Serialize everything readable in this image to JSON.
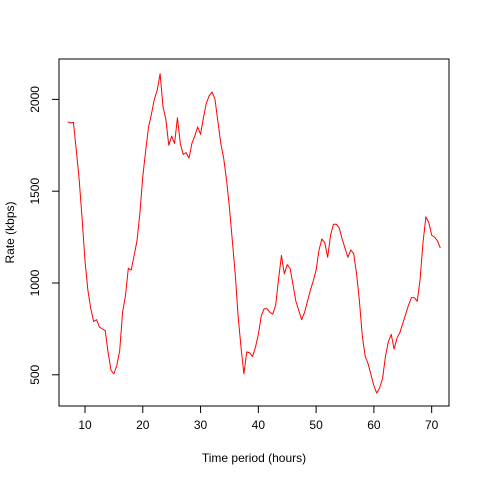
{
  "chart_data": {
    "type": "line",
    "title": "",
    "xlabel": "Time period (hours)",
    "ylabel": "Rate (kbps)",
    "xlim": [
      5.5,
      73
    ],
    "ylim": [
      330,
      2220
    ],
    "x_ticks": [
      10,
      20,
      30,
      40,
      50,
      60,
      70
    ],
    "y_ticks": [
      500,
      1000,
      1500,
      2000
    ],
    "grid": false,
    "legend": "none",
    "series": [
      {
        "color": "#FF0000",
        "points": [
          [
            7.0,
            1878
          ],
          [
            7.5,
            1872
          ],
          [
            8.0,
            1875
          ],
          [
            8.5,
            1720
          ],
          [
            9.0,
            1560
          ],
          [
            9.5,
            1350
          ],
          [
            10.0,
            1120
          ],
          [
            10.5,
            960
          ],
          [
            11.0,
            860
          ],
          [
            11.5,
            790
          ],
          [
            12.0,
            800
          ],
          [
            12.5,
            760
          ],
          [
            13.0,
            750
          ],
          [
            13.5,
            740
          ],
          [
            14.0,
            620
          ],
          [
            14.5,
            525
          ],
          [
            15.0,
            505
          ],
          [
            15.5,
            550
          ],
          [
            16.0,
            630
          ],
          [
            16.5,
            840
          ],
          [
            17.0,
            930
          ],
          [
            17.5,
            1080
          ],
          [
            18.0,
            1070
          ],
          [
            18.5,
            1150
          ],
          [
            19.0,
            1230
          ],
          [
            19.5,
            1380
          ],
          [
            20.0,
            1580
          ],
          [
            20.5,
            1720
          ],
          [
            21.0,
            1850
          ],
          [
            21.5,
            1920
          ],
          [
            22.0,
            2000
          ],
          [
            22.5,
            2050
          ],
          [
            23.0,
            2140
          ],
          [
            23.5,
            1960
          ],
          [
            24.0,
            1890
          ],
          [
            24.5,
            1750
          ],
          [
            25.0,
            1800
          ],
          [
            25.5,
            1760
          ],
          [
            26.0,
            1900
          ],
          [
            26.5,
            1760
          ],
          [
            27.0,
            1700
          ],
          [
            27.5,
            1710
          ],
          [
            28.0,
            1680
          ],
          [
            28.5,
            1760
          ],
          [
            29.0,
            1800
          ],
          [
            29.5,
            1850
          ],
          [
            30.0,
            1810
          ],
          [
            30.5,
            1900
          ],
          [
            31.0,
            1980
          ],
          [
            31.5,
            2020
          ],
          [
            32.0,
            2040
          ],
          [
            32.5,
            2000
          ],
          [
            33.0,
            1880
          ],
          [
            33.5,
            1760
          ],
          [
            34.0,
            1680
          ],
          [
            34.5,
            1560
          ],
          [
            35.0,
            1410
          ],
          [
            35.5,
            1230
          ],
          [
            36.0,
            1050
          ],
          [
            36.5,
            820
          ],
          [
            37.0,
            650
          ],
          [
            37.5,
            505
          ],
          [
            38.0,
            625
          ],
          [
            38.5,
            620
          ],
          [
            39.0,
            600
          ],
          [
            39.5,
            650
          ],
          [
            40.0,
            720
          ],
          [
            40.5,
            820
          ],
          [
            41.0,
            860
          ],
          [
            41.5,
            860
          ],
          [
            42.0,
            840
          ],
          [
            42.5,
            830
          ],
          [
            43.0,
            880
          ],
          [
            43.5,
            1020
          ],
          [
            44.0,
            1150
          ],
          [
            44.5,
            1050
          ],
          [
            45.0,
            1100
          ],
          [
            45.5,
            1080
          ],
          [
            46.0,
            990
          ],
          [
            46.5,
            900
          ],
          [
            47.0,
            850
          ],
          [
            47.5,
            800
          ],
          [
            48.0,
            840
          ],
          [
            48.5,
            900
          ],
          [
            49.0,
            960
          ],
          [
            49.5,
            1010
          ],
          [
            50.0,
            1070
          ],
          [
            50.5,
            1180
          ],
          [
            51.0,
            1240
          ],
          [
            51.5,
            1220
          ],
          [
            52.0,
            1140
          ],
          [
            52.5,
            1260
          ],
          [
            53.0,
            1320
          ],
          [
            53.5,
            1320
          ],
          [
            54.0,
            1300
          ],
          [
            54.5,
            1240
          ],
          [
            55.0,
            1190
          ],
          [
            55.5,
            1140
          ],
          [
            56.0,
            1180
          ],
          [
            56.5,
            1160
          ],
          [
            57.0,
            1050
          ],
          [
            57.5,
            900
          ],
          [
            58.0,
            710
          ],
          [
            58.5,
            600
          ],
          [
            59.0,
            560
          ],
          [
            59.5,
            500
          ],
          [
            60.0,
            440
          ],
          [
            60.5,
            400
          ],
          [
            61.0,
            430
          ],
          [
            61.5,
            480
          ],
          [
            62.0,
            600
          ],
          [
            62.5,
            680
          ],
          [
            63.0,
            720
          ],
          [
            63.5,
            640
          ],
          [
            64.0,
            700
          ],
          [
            64.5,
            730
          ],
          [
            65.0,
            780
          ],
          [
            65.5,
            830
          ],
          [
            66.0,
            880
          ],
          [
            66.5,
            920
          ],
          [
            67.0,
            920
          ],
          [
            67.5,
            900
          ],
          [
            68.0,
            1020
          ],
          [
            68.5,
            1220
          ],
          [
            69.0,
            1360
          ],
          [
            69.5,
            1330
          ],
          [
            70.0,
            1260
          ],
          [
            70.5,
            1250
          ],
          [
            71.0,
            1230
          ],
          [
            71.5,
            1190
          ]
        ]
      }
    ]
  }
}
